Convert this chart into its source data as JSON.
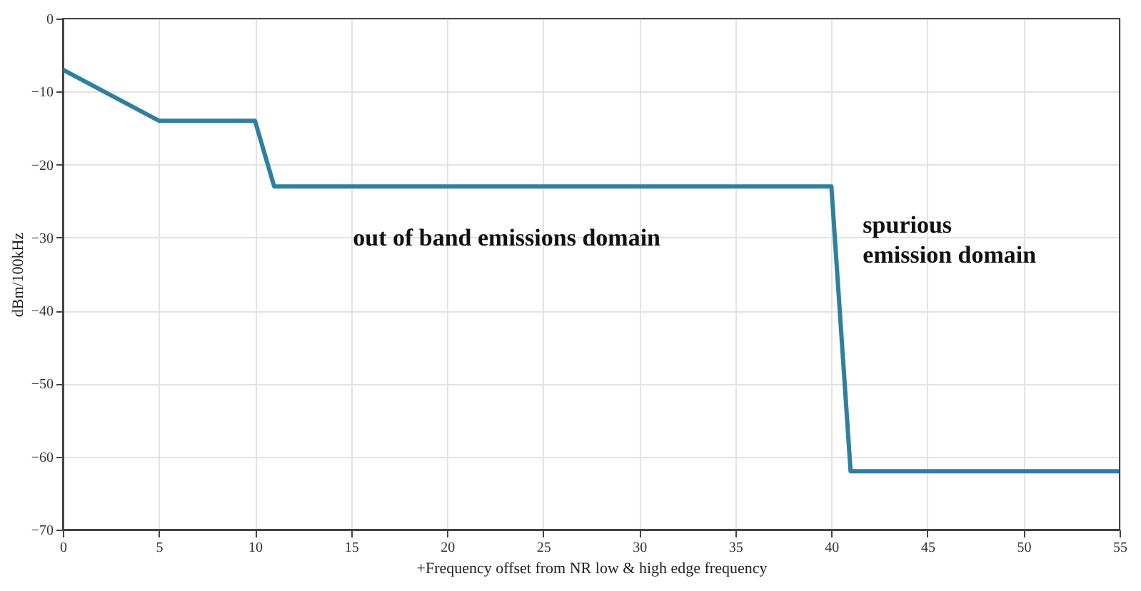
{
  "chart_data": {
    "type": "line",
    "xlabel": "+Frequency offset from NR low & high edge frequency",
    "ylabel": "dBm/100kHz",
    "x": [
      0,
      5,
      10,
      11,
      40,
      41,
      55
    ],
    "series": [
      {
        "color": "#2f7f9f",
        "values": [
          -7,
          -14,
          -14,
          -23,
          -23,
          -62,
          -62
        ]
      }
    ],
    "xlim": [
      0,
      55
    ],
    "xticks": [
      0,
      5,
      10,
      15,
      20,
      25,
      30,
      35,
      40,
      45,
      50,
      55
    ],
    "ylim": [
      -70,
      0
    ],
    "yticks": [
      -70,
      -60,
      -50,
      -40,
      -30,
      -20,
      -10,
      0
    ],
    "grid": true,
    "annotations": [
      "out of band emissions domain",
      "spurious\nemission domain"
    ]
  }
}
